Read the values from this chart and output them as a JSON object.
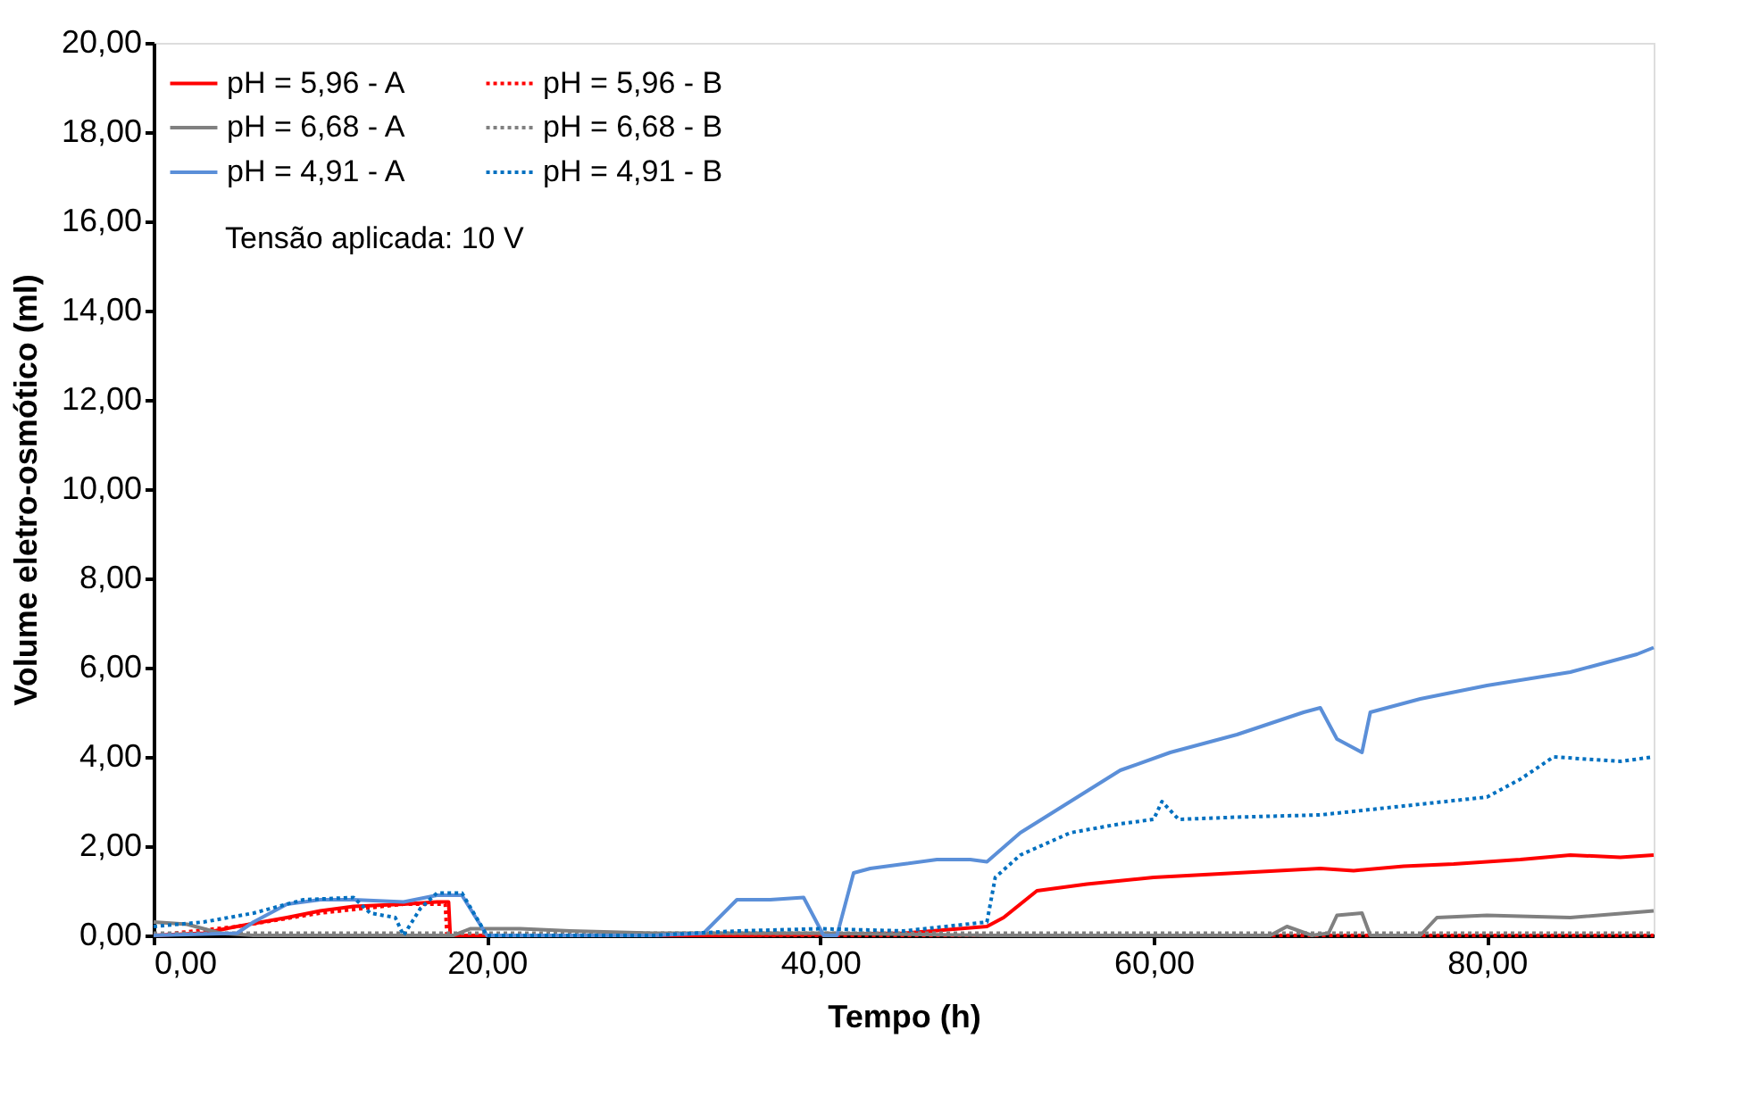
{
  "chart_data": {
    "type": "line",
    "xlabel": "Tempo (h)",
    "ylabel": "Volume eletro-osmótico (ml)",
    "annotations": [
      "Tensão aplicada: 10 V"
    ],
    "xlim": [
      0,
      90
    ],
    "ylim": [
      0,
      20
    ],
    "xticks": [
      {
        "value": 0,
        "label": "0,00"
      },
      {
        "value": 20,
        "label": "20,00"
      },
      {
        "value": 40,
        "label": "40,00"
      },
      {
        "value": 60,
        "label": "60,00"
      },
      {
        "value": 80,
        "label": "80,00"
      }
    ],
    "yticks": [
      {
        "value": 0,
        "label": "0,00"
      },
      {
        "value": 2,
        "label": "2,00"
      },
      {
        "value": 4,
        "label": "4,00"
      },
      {
        "value": 6,
        "label": "6,00"
      },
      {
        "value": 8,
        "label": "8,00"
      },
      {
        "value": 10,
        "label": "10,00"
      },
      {
        "value": 12,
        "label": "12,00"
      },
      {
        "value": 14,
        "label": "14,00"
      },
      {
        "value": 16,
        "label": "16,00"
      },
      {
        "value": 18,
        "label": "18,00"
      },
      {
        "value": 20,
        "label": "20,00"
      }
    ],
    "grid": false,
    "legend": "top left",
    "marker": "none",
    "series": [
      {
        "name": "pH = 5,96 - A",
        "color": "#ff0000",
        "line_style": "solid",
        "x": [
          0,
          3,
          5,
          8,
          10,
          12,
          15,
          17,
          17.7,
          17.8,
          25,
          35,
          45,
          50,
          51,
          53,
          56,
          60,
          65,
          70,
          72,
          75,
          78,
          82,
          85,
          88,
          90
        ],
        "values": [
          0,
          0.05,
          0.2,
          0.4,
          0.55,
          0.65,
          0.7,
          0.75,
          0.75,
          0,
          0,
          0,
          0.05,
          0.2,
          0.4,
          1.0,
          1.15,
          1.3,
          1.4,
          1.5,
          1.45,
          1.55,
          1.6,
          1.7,
          1.8,
          1.75,
          1.8
        ]
      },
      {
        "name": "pH = 5,96 - B",
        "color": "#ff0000",
        "line_style": "dotted",
        "x": [
          0,
          5,
          10,
          15,
          17.5,
          17.6,
          30,
          50,
          70,
          90
        ],
        "values": [
          0,
          0.2,
          0.5,
          0.7,
          0.7,
          0,
          0,
          0,
          0,
          0
        ]
      },
      {
        "name": "pH = 6,68 - A",
        "color": "#808080",
        "line_style": "solid",
        "x": [
          0,
          2,
          4,
          6,
          18,
          19,
          22,
          25,
          30,
          40,
          50,
          60,
          67,
          68,
          69.5,
          70.5,
          71,
          72.5,
          73,
          75,
          76,
          77,
          80,
          85,
          90
        ],
        "values": [
          0.3,
          0.25,
          0.05,
          0,
          0,
          0.15,
          0.15,
          0.1,
          0.05,
          0.05,
          0,
          0,
          0,
          0.2,
          0,
          0.05,
          0.45,
          0.5,
          0,
          0,
          0,
          0.4,
          0.45,
          0.4,
          0.55
        ]
      },
      {
        "name": "pH = 6,68 - B",
        "color": "#808080",
        "line_style": "dotted",
        "x": [
          0,
          20,
          40,
          60,
          90
        ],
        "values": [
          0.05,
          0.05,
          0.05,
          0.05,
          0.05
        ]
      },
      {
        "name": "pH = 4,91 - A",
        "color": "#5b8fd8",
        "line_style": "solid",
        "x": [
          0,
          5,
          6,
          8,
          10,
          12,
          15,
          17,
          18.5,
          20,
          25,
          30,
          33,
          35,
          37,
          39,
          40.2,
          41,
          42,
          43,
          45,
          47,
          49,
          50,
          52,
          55,
          58,
          61,
          65,
          69,
          70,
          71,
          72.5,
          73,
          76,
          80,
          85,
          89,
          90
        ],
        "values": [
          0,
          0.05,
          0.3,
          0.7,
          0.8,
          0.8,
          0.75,
          0.9,
          0.9,
          0,
          0,
          0,
          0.05,
          0.8,
          0.8,
          0.85,
          0,
          0,
          1.4,
          1.5,
          1.6,
          1.7,
          1.7,
          1.65,
          2.3,
          3.0,
          3.7,
          4.1,
          4.5,
          5.0,
          5.1,
          4.4,
          4.1,
          5.0,
          5.3,
          5.6,
          5.9,
          6.3,
          6.45
        ]
      },
      {
        "name": "pH = 4,91 - B",
        "color": "#0070c0",
        "line_style": "dotted",
        "x": [
          0,
          3,
          6,
          9,
          12,
          13,
          14.5,
          15,
          16,
          17,
          18.5,
          20,
          25,
          30,
          35,
          40,
          45,
          50,
          50.5,
          52,
          55,
          58,
          60,
          60.5,
          61.5,
          65,
          70,
          75,
          80,
          82,
          84,
          88,
          90
        ],
        "values": [
          0.2,
          0.3,
          0.5,
          0.8,
          0.85,
          0.5,
          0.4,
          0,
          0.6,
          0.95,
          0.95,
          0,
          0,
          0,
          0.1,
          0.15,
          0.1,
          0.3,
          1.3,
          1.8,
          2.3,
          2.5,
          2.6,
          3.0,
          2.6,
          2.65,
          2.7,
          2.9,
          3.1,
          3.5,
          4.0,
          3.9,
          4.0
        ]
      }
    ]
  }
}
